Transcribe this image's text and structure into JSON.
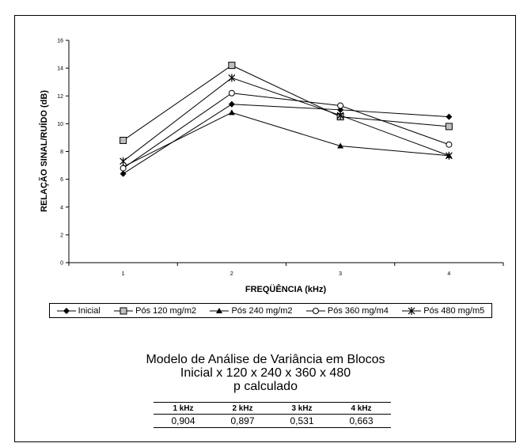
{
  "chart_data": {
    "type": "line",
    "title": "",
    "xlabel": "FREQÜÊNCIA (kHz)",
    "ylabel": "RELAÇÃO SINAL/RUÍDO (dB)",
    "categories": [
      "1",
      "2",
      "3",
      "4"
    ],
    "ylim": [
      0,
      16
    ],
    "yticks": [
      "0",
      "2",
      "4",
      "6",
      "8",
      "10",
      "12",
      "14",
      "16"
    ],
    "grid": false,
    "legend_position": "bottom",
    "series": [
      {
        "name": "Inicial",
        "marker": "diamond-filled",
        "values": [
          6.4,
          11.4,
          11.0,
          10.5
        ]
      },
      {
        "name": "Pós 120 mg/m2",
        "marker": "square-open",
        "values": [
          8.8,
          14.2,
          10.5,
          9.8
        ]
      },
      {
        "name": "Pós 240 mg/m2",
        "marker": "triangle-filled",
        "values": [
          6.9,
          10.8,
          8.4,
          7.7
        ]
      },
      {
        "name": "Pós 360 mg/m4",
        "marker": "circle-open",
        "values": [
          6.8,
          12.2,
          11.3,
          8.5
        ]
      },
      {
        "name": "Pós 480 mg/m5",
        "marker": "asterisk",
        "values": [
          7.3,
          13.3,
          10.6,
          7.7
        ]
      }
    ]
  },
  "caption": {
    "line1": "Modelo de Análise de Variância em Blocos",
    "line2": "Inicial x 120 x 240 x 360 x 480",
    "line3": "p calculado"
  },
  "table": {
    "headers": [
      "1 kHz",
      "2 kHz",
      "3 kHz",
      "4 kHz"
    ],
    "values": [
      "0,904",
      "0,897",
      "0,531",
      "0,663"
    ]
  },
  "colors": {
    "line": "#000000",
    "square_fill": "#c0c0c0",
    "background": "#ffffff"
  }
}
